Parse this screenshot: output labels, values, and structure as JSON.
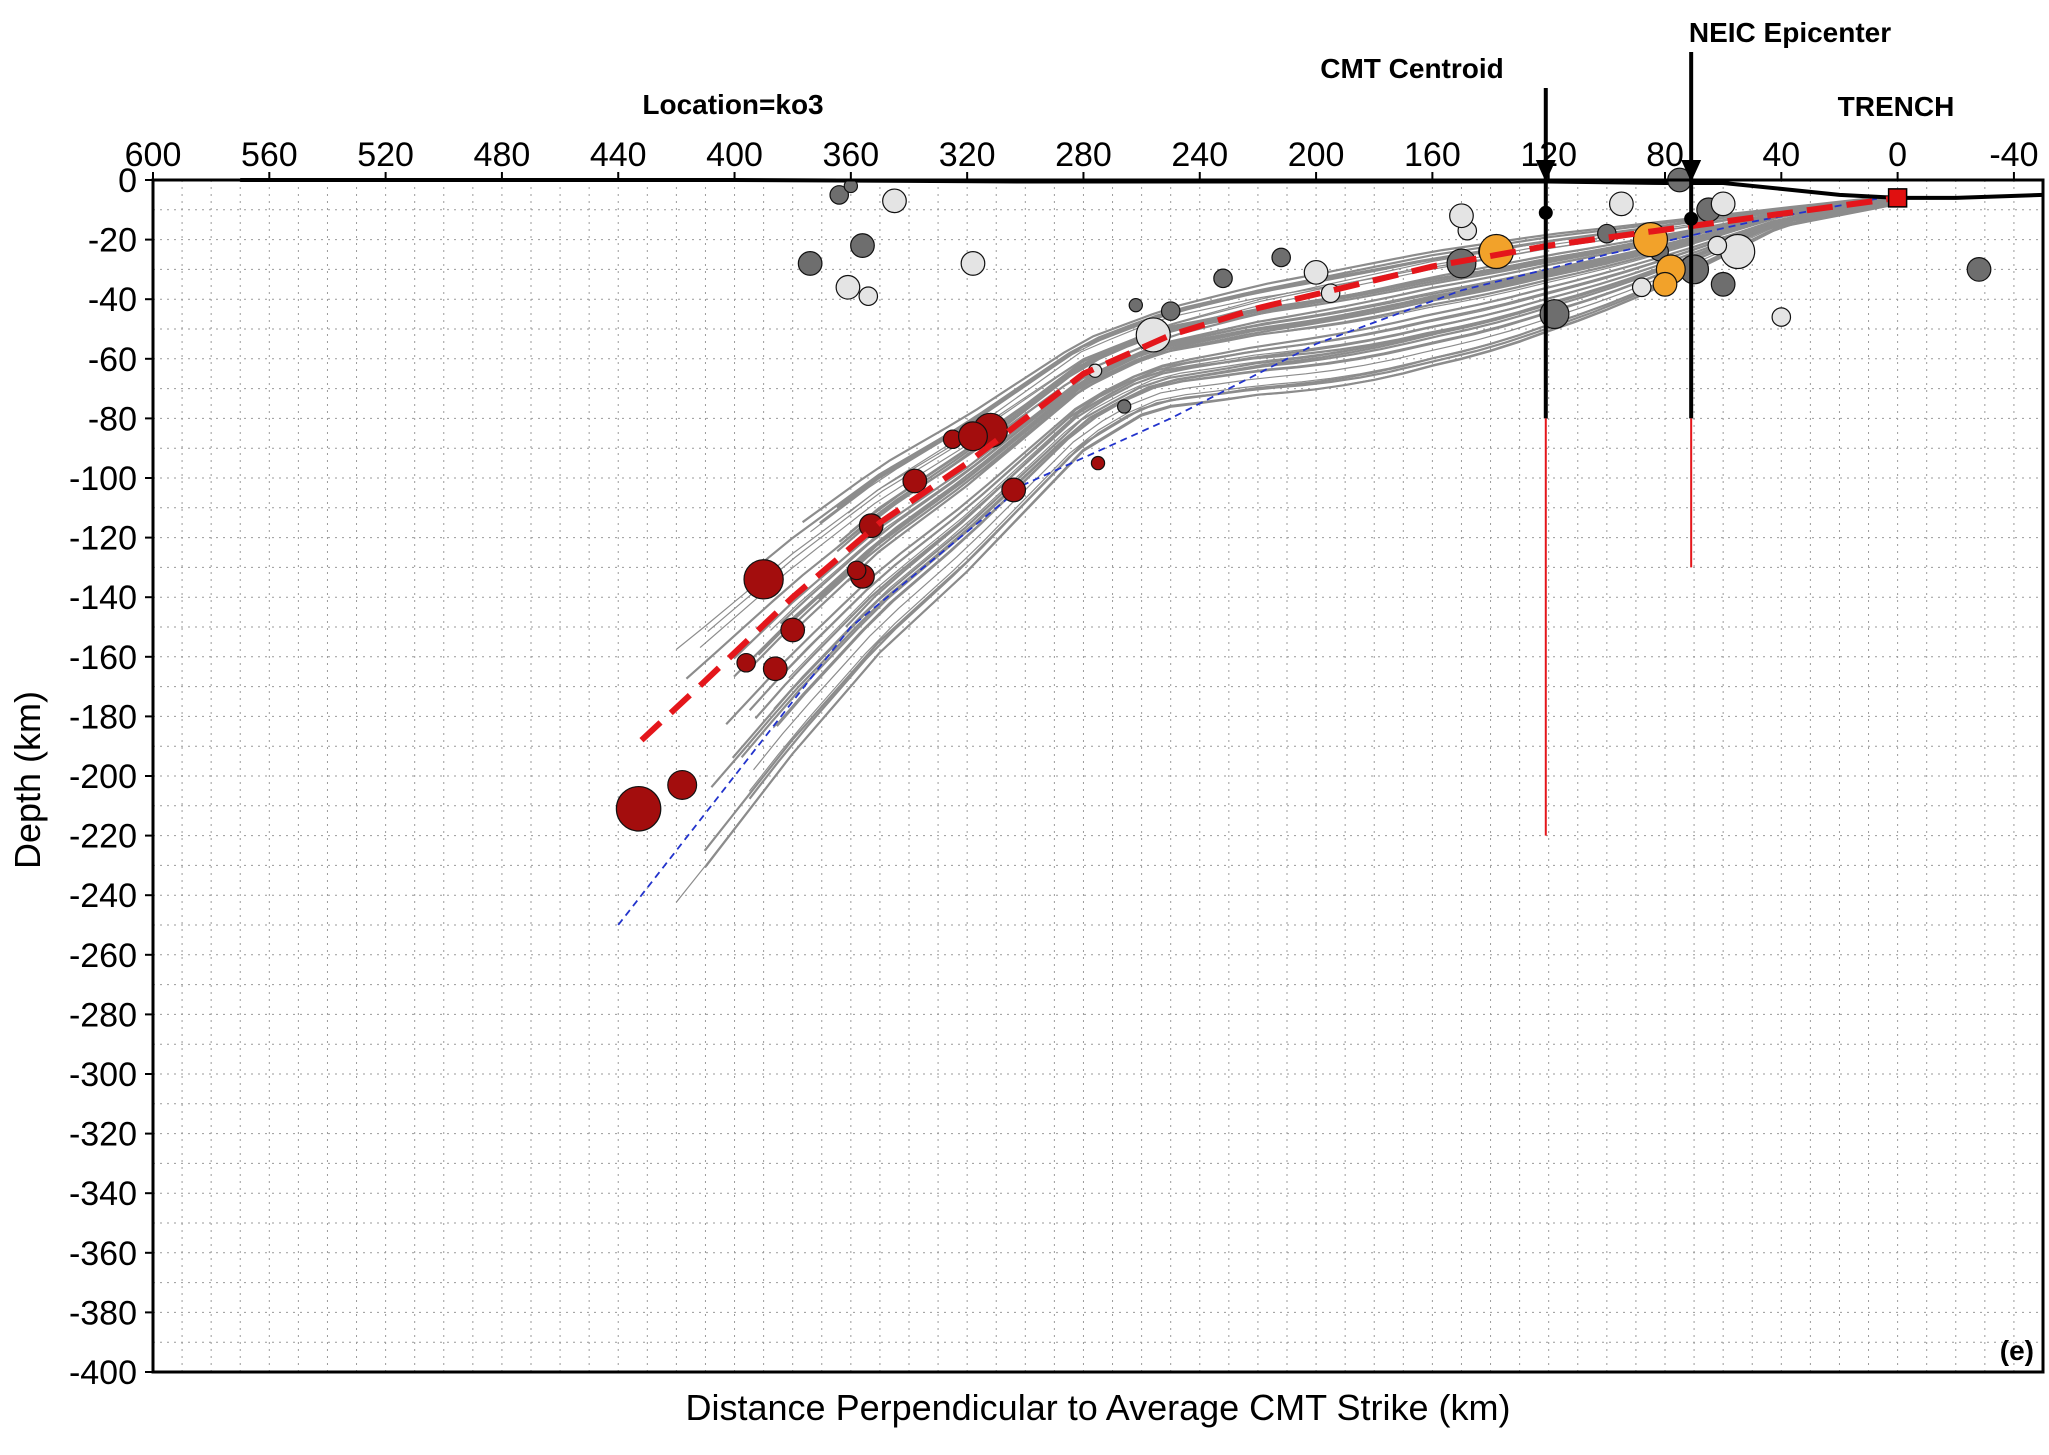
{
  "chart_data": {
    "type": "scatter",
    "title": "Location=ko3",
    "xlabel": "Distance Perpendicular to Average CMT Strike (km)",
    "ylabel": "Depth (km)",
    "panel_label": "(e)",
    "xlim": [
      600,
      -50
    ],
    "ylim": [
      -400,
      0
    ],
    "x_ticks": [
      600,
      560,
      520,
      480,
      440,
      400,
      360,
      320,
      280,
      240,
      200,
      160,
      120,
      80,
      40,
      0,
      -40
    ],
    "y_ticks": [
      0,
      -20,
      -40,
      -60,
      -80,
      -100,
      -120,
      -140,
      -160,
      -180,
      -200,
      -220,
      -240,
      -260,
      -280,
      -300,
      -320,
      -340,
      -360,
      -380,
      -400
    ],
    "x_tick_labels": [
      "600",
      "560",
      "520",
      "480",
      "440",
      "400",
      "360",
      "320",
      "280",
      "240",
      "200",
      "160",
      "120",
      "80",
      "40",
      "0",
      "-40"
    ],
    "y_tick_labels": [
      "0",
      "-20",
      "-40",
      "-60",
      "-80",
      "-100",
      "-120",
      "-140",
      "-160",
      "-180",
      "-200",
      "-220",
      "-240",
      "-260",
      "-280",
      "-300",
      "-320",
      "-340",
      "-360",
      "-380",
      "-400"
    ],
    "grid": true,
    "markers": {
      "cmt_centroid": {
        "label": "CMT Centroid",
        "x": 121,
        "depth": -11,
        "error_bar": [
          -80,
          -220
        ]
      },
      "neic_epicenter": {
        "label": "NEIC Epicenter",
        "x": 71,
        "depth": -13,
        "error_bar": [
          -80,
          -130
        ]
      },
      "trench": {
        "label": "TRENCH",
        "x": 0,
        "depth": -6
      }
    },
    "topography": [
      [
        570,
        0
      ],
      [
        400,
        0
      ],
      [
        300,
        -0.5
      ],
      [
        200,
        -0.5
      ],
      [
        120,
        -0.5
      ],
      [
        80,
        -1
      ],
      [
        60,
        -1
      ],
      [
        40,
        -3
      ],
      [
        20,
        -5
      ],
      [
        0,
        -6
      ],
      [
        -20,
        -6
      ],
      [
        -50,
        -5
      ]
    ],
    "slab_model": [
      [
        432,
        -188
      ],
      [
        410,
        -168
      ],
      [
        380,
        -140
      ],
      [
        350,
        -115
      ],
      [
        320,
        -95
      ],
      [
        300,
        -80
      ],
      [
        280,
        -65
      ],
      [
        250,
        -52
      ],
      [
        220,
        -43
      ],
      [
        190,
        -36
      ],
      [
        160,
        -29
      ],
      [
        120,
        -22
      ],
      [
        90,
        -18
      ],
      [
        60,
        -14
      ],
      [
        30,
        -10
      ],
      [
        0,
        -6
      ]
    ],
    "lower_bound": [
      [
        440,
        -250
      ],
      [
        400,
        -200
      ],
      [
        360,
        -150
      ],
      [
        300,
        -102
      ],
      [
        250,
        -80
      ],
      [
        200,
        -55
      ],
      [
        150,
        -37
      ],
      [
        100,
        -25
      ],
      [
        50,
        -14
      ],
      [
        0,
        -5
      ]
    ],
    "slab_ensemble_count": 42,
    "events": [
      {
        "x": 433,
        "depth": -211,
        "mag": 7,
        "category": "deep"
      },
      {
        "x": 418,
        "depth": -203,
        "mag": 4,
        "category": "deep"
      },
      {
        "x": 390,
        "depth": -134,
        "mag": 6,
        "category": "deep"
      },
      {
        "x": 386,
        "depth": -164,
        "mag": 3,
        "category": "deep"
      },
      {
        "x": 380,
        "depth": -151,
        "mag": 3,
        "category": "deep"
      },
      {
        "x": 396,
        "depth": -162,
        "mag": 2,
        "category": "deep"
      },
      {
        "x": 356,
        "depth": -133,
        "mag": 3,
        "category": "deep"
      },
      {
        "x": 358,
        "depth": -131,
        "mag": 2,
        "category": "deep"
      },
      {
        "x": 353,
        "depth": -116,
        "mag": 3,
        "category": "deep"
      },
      {
        "x": 338,
        "depth": -101,
        "mag": 3,
        "category": "deep"
      },
      {
        "x": 312,
        "depth": -84,
        "mag": 5,
        "category": "deep"
      },
      {
        "x": 325,
        "depth": -87,
        "mag": 2,
        "category": "deep"
      },
      {
        "x": 304,
        "depth": -104,
        "mag": 3,
        "category": "deep"
      },
      {
        "x": 275,
        "depth": -95,
        "mag": 1,
        "category": "deep"
      },
      {
        "x": 318,
        "depth": -86,
        "mag": 4,
        "category": "deep"
      },
      {
        "x": 364,
        "depth": -5,
        "mag": 2,
        "category": "shallow-dark"
      },
      {
        "x": 360,
        "depth": -2,
        "mag": 1,
        "category": "shallow-dark"
      },
      {
        "x": 374,
        "depth": -28,
        "mag": 3,
        "category": "shallow-dark"
      },
      {
        "x": 356,
        "depth": -22,
        "mag": 3,
        "category": "shallow-dark"
      },
      {
        "x": 250,
        "depth": -44,
        "mag": 2,
        "category": "shallow-dark"
      },
      {
        "x": 232,
        "depth": -33,
        "mag": 2,
        "category": "shallow-dark"
      },
      {
        "x": 212,
        "depth": -26,
        "mag": 2,
        "category": "shallow-dark"
      },
      {
        "x": 262,
        "depth": -42,
        "mag": 1,
        "category": "shallow-dark"
      },
      {
        "x": 150,
        "depth": -28,
        "mag": 4,
        "category": "shallow-dark"
      },
      {
        "x": 140,
        "depth": -24,
        "mag": 3,
        "category": "shallow-dark"
      },
      {
        "x": 118,
        "depth": -45,
        "mag": 4,
        "category": "shallow-dark"
      },
      {
        "x": 100,
        "depth": -18,
        "mag": 2,
        "category": "shallow-dark"
      },
      {
        "x": 75,
        "depth": 0,
        "mag": 3,
        "category": "shallow-dark"
      },
      {
        "x": 70,
        "depth": -30,
        "mag": 4,
        "category": "shallow-dark"
      },
      {
        "x": 65,
        "depth": -10,
        "mag": 3,
        "category": "shallow-dark"
      },
      {
        "x": 60,
        "depth": -35,
        "mag": 3,
        "category": "shallow-dark"
      },
      {
        "x": 82,
        "depth": -24,
        "mag": 2,
        "category": "shallow-dark"
      },
      {
        "x": -28,
        "depth": -30,
        "mag": 3,
        "category": "shallow-dark"
      },
      {
        "x": 266,
        "depth": -76,
        "mag": 1,
        "category": "shallow-dark"
      },
      {
        "x": 345,
        "depth": -7,
        "mag": 3,
        "category": "shallow-light"
      },
      {
        "x": 361,
        "depth": -36,
        "mag": 3,
        "category": "shallow-light"
      },
      {
        "x": 354,
        "depth": -39,
        "mag": 2,
        "category": "shallow-light"
      },
      {
        "x": 318,
        "depth": -28,
        "mag": 3,
        "category": "shallow-light"
      },
      {
        "x": 256,
        "depth": -52,
        "mag": 5,
        "category": "shallow-light"
      },
      {
        "x": 200,
        "depth": -31,
        "mag": 3,
        "category": "shallow-light"
      },
      {
        "x": 195,
        "depth": -38,
        "mag": 2,
        "category": "shallow-light"
      },
      {
        "x": 148,
        "depth": -17,
        "mag": 2,
        "category": "shallow-light"
      },
      {
        "x": 150,
        "depth": -12,
        "mag": 3,
        "category": "shallow-light"
      },
      {
        "x": 95,
        "depth": -8,
        "mag": 3,
        "category": "shallow-light"
      },
      {
        "x": 88,
        "depth": -36,
        "mag": 2,
        "category": "shallow-light"
      },
      {
        "x": 55,
        "depth": -24,
        "mag": 5,
        "category": "shallow-light"
      },
      {
        "x": 60,
        "depth": -8,
        "mag": 3,
        "category": "shallow-light"
      },
      {
        "x": 40,
        "depth": -46,
        "mag": 2,
        "category": "shallow-light"
      },
      {
        "x": 62,
        "depth": -22,
        "mag": 2,
        "category": "shallow-light"
      },
      {
        "x": 276,
        "depth": -64,
        "mag": 1,
        "category": "shallow-light"
      },
      {
        "x": 138,
        "depth": -24,
        "mag": 5,
        "category": "mainshock-area"
      },
      {
        "x": 85,
        "depth": -20,
        "mag": 5,
        "category": "mainshock-area"
      },
      {
        "x": 78,
        "depth": -30,
        "mag": 4,
        "category": "mainshock-area"
      },
      {
        "x": 80,
        "depth": -35,
        "mag": 3,
        "category": "mainshock-area"
      }
    ]
  }
}
